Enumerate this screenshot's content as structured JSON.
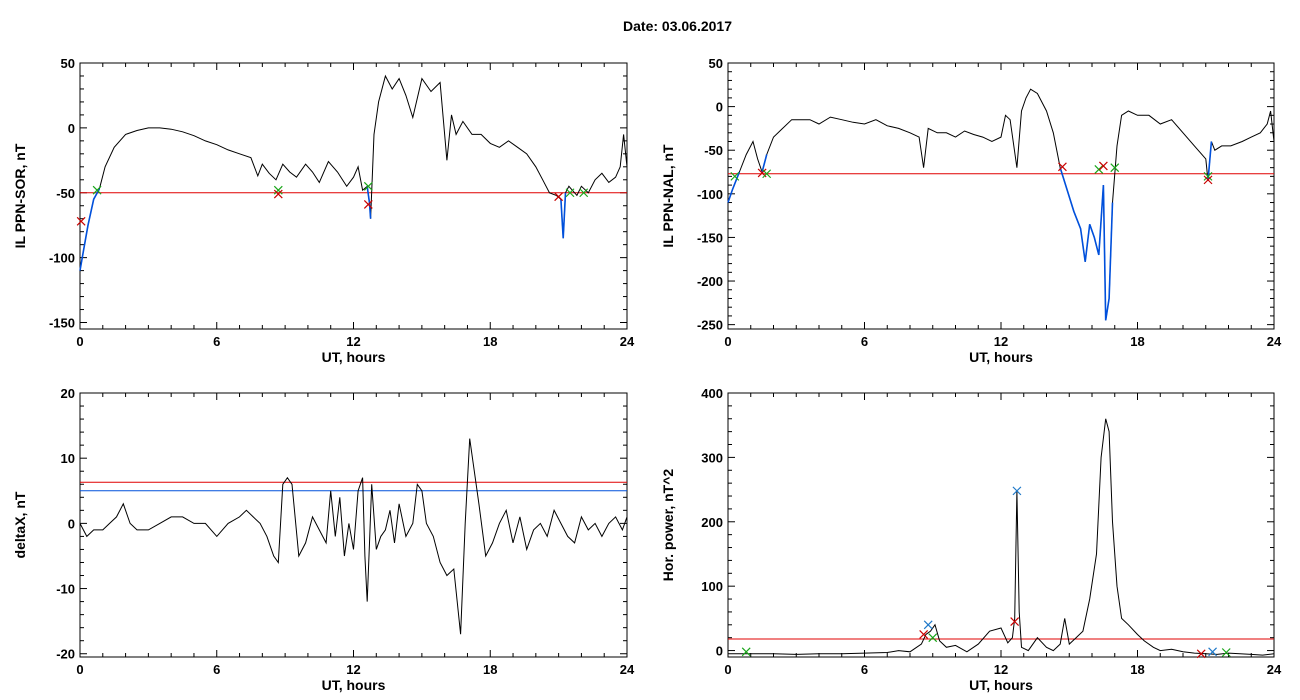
{
  "page": {
    "date_text": "Date:  03.06.2017"
  },
  "colors": {
    "data": "#000000",
    "event": "#0050dc",
    "threshold_red": "#e00000",
    "threshold_blue": "#0050dc",
    "start_marker": "#19a519",
    "end_marker": "#c80000",
    "peak_marker": "#1e78c8"
  },
  "chart_data": [
    {
      "id": "sor",
      "type": "line",
      "ylabel": "IL PPN-SOR, nT",
      "xlabel": "UT, hours",
      "xlim": [
        0,
        24
      ],
      "ylim": [
        -155,
        50
      ],
      "xticks": [
        0,
        6,
        12,
        18,
        24
      ],
      "yticks": [
        50,
        0,
        -50,
        -100,
        -150
      ],
      "thresholds": [
        {
          "value": -50,
          "color": "red"
        }
      ],
      "series": [
        {
          "x": [
            0,
            0.15,
            0.35,
            0.6,
            0.85,
            1.1,
            1.5,
            2,
            2.5,
            3,
            3.5,
            4,
            4.5,
            5,
            5.5,
            6,
            6.5,
            7,
            7.5,
            7.8,
            8,
            8.3,
            8.6,
            8.9,
            9.2,
            9.5,
            9.9,
            10.2,
            10.5,
            10.9,
            11.3,
            11.7,
            12,
            12.2,
            12.4,
            12.6,
            12.7,
            12.75,
            12.9,
            13.1,
            13.4,
            13.7,
            14,
            14.3,
            14.6,
            15,
            15.4,
            15.8,
            16.1,
            16.3,
            16.5,
            16.8,
            17.2,
            17.6,
            18,
            18.4,
            18.8,
            19.2,
            19.6,
            20,
            20.3,
            20.6,
            20.9,
            21.1,
            21.2,
            21.3,
            21.45,
            21.6,
            21.8,
            22,
            22.3,
            22.6,
            22.9,
            23.2,
            23.5,
            23.7,
            23.85,
            24
          ],
          "y": [
            -110,
            -95,
            -75,
            -55,
            -47,
            -30,
            -15,
            -5,
            -2,
            0,
            0,
            -1,
            -3,
            -6,
            -10,
            -13,
            -17,
            -20,
            -23,
            -37,
            -28,
            -35,
            -40,
            -28,
            -34,
            -38,
            -28,
            -34,
            -42,
            -26,
            -34,
            -45,
            -38,
            -30,
            -48,
            -45,
            -58,
            -70,
            -5,
            20,
            40,
            30,
            38,
            25,
            8,
            38,
            28,
            35,
            -25,
            10,
            -5,
            5,
            -5,
            -5,
            -12,
            -15,
            -10,
            -15,
            -20,
            -30,
            -40,
            -50,
            -52,
            -55,
            -85,
            -50,
            -45,
            -48,
            -52,
            -45,
            -50,
            -40,
            -35,
            -42,
            -38,
            -30,
            -5,
            -30
          ]
        }
      ],
      "event_segments": [
        [
          0,
          0.9
        ],
        [
          12.6,
          12.8
        ],
        [
          21.05,
          21.4
        ]
      ],
      "markers": [
        {
          "x": 0.05,
          "y": -72,
          "kind": "end"
        },
        {
          "x": 0.75,
          "y": -48,
          "kind": "start"
        },
        {
          "x": 8.7,
          "y": -48,
          "kind": "start"
        },
        {
          "x": 8.7,
          "y": -51,
          "kind": "end"
        },
        {
          "x": 12.65,
          "y": -45,
          "kind": "start"
        },
        {
          "x": 12.65,
          "y": -59,
          "kind": "end"
        },
        {
          "x": 21.0,
          "y": -53,
          "kind": "end"
        },
        {
          "x": 21.5,
          "y": -50,
          "kind": "start"
        },
        {
          "x": 22.1,
          "y": -50,
          "kind": "start"
        }
      ]
    },
    {
      "id": "nal",
      "type": "line",
      "ylabel": "IL PPN-NAL, nT",
      "xlabel": "UT, hours",
      "xlim": [
        0,
        24
      ],
      "ylim": [
        -255,
        50
      ],
      "xticks": [
        0,
        6,
        12,
        18,
        24
      ],
      "yticks": [
        50,
        0,
        -50,
        -100,
        -150,
        -200,
        -250
      ],
      "thresholds": [
        {
          "value": -77,
          "color": "red"
        }
      ],
      "series": [
        {
          "x": [
            0,
            0.2,
            0.5,
            0.8,
            1.1,
            1.3,
            1.5,
            1.7,
            2,
            2.4,
            2.8,
            3.2,
            3.6,
            4,
            4.5,
            5,
            5.5,
            6,
            6.5,
            7,
            7.5,
            8,
            8.4,
            8.6,
            8.8,
            9.2,
            9.6,
            10,
            10.4,
            10.8,
            11.2,
            11.6,
            12,
            12.2,
            12.4,
            12.7,
            12.9,
            13.1,
            13.3,
            13.6,
            14,
            14.3,
            14.6,
            14.9,
            15.2,
            15.5,
            15.7,
            15.9,
            16.1,
            16.3,
            16.5,
            16.6,
            16.75,
            16.9,
            17.1,
            17.3,
            17.6,
            18,
            18.5,
            19,
            19.5,
            20,
            20.5,
            21,
            21.1,
            21.25,
            21.4,
            21.7,
            22.1,
            22.6,
            23,
            23.4,
            23.7,
            23.85,
            24
          ],
          "y": [
            -110,
            -95,
            -75,
            -55,
            -40,
            -60,
            -75,
            -55,
            -35,
            -25,
            -15,
            -15,
            -15,
            -20,
            -12,
            -15,
            -18,
            -20,
            -15,
            -22,
            -25,
            -30,
            -35,
            -70,
            -25,
            -30,
            -30,
            -35,
            -28,
            -32,
            -35,
            -40,
            -35,
            -10,
            -15,
            -70,
            -5,
            10,
            20,
            15,
            -5,
            -30,
            -70,
            -95,
            -120,
            -140,
            -178,
            -135,
            -150,
            -170,
            -90,
            -245,
            -220,
            -110,
            -45,
            -10,
            -5,
            -10,
            -10,
            -20,
            -15,
            -30,
            -45,
            -60,
            -85,
            -40,
            -50,
            -45,
            -45,
            -40,
            -35,
            -30,
            -20,
            -5,
            -40
          ]
        }
      ],
      "event_segments": [
        [
          0,
          0.7
        ],
        [
          1.4,
          1.8
        ],
        [
          14.6,
          16.9
        ],
        [
          21.05,
          21.3
        ]
      ],
      "markers": [
        {
          "x": 0.3,
          "y": -80,
          "kind": "start"
        },
        {
          "x": 1.5,
          "y": -76,
          "kind": "end"
        },
        {
          "x": 1.7,
          "y": -77,
          "kind": "start"
        },
        {
          "x": 14.7,
          "y": -69,
          "kind": "end"
        },
        {
          "x": 16.3,
          "y": -72,
          "kind": "start"
        },
        {
          "x": 16.5,
          "y": -68,
          "kind": "end"
        },
        {
          "x": 17.0,
          "y": -70,
          "kind": "start"
        },
        {
          "x": 21.1,
          "y": -80,
          "kind": "start"
        },
        {
          "x": 21.1,
          "y": -84,
          "kind": "end"
        }
      ]
    },
    {
      "id": "deltax",
      "type": "line",
      "ylabel": "deltaX, nT",
      "xlabel": "UT, hours",
      "xlim": [
        0,
        24
      ],
      "ylim": [
        -20.5,
        20
      ],
      "xticks": [
        0,
        6,
        12,
        18,
        24
      ],
      "yticks": [
        20,
        10,
        0,
        -10,
        -20
      ],
      "thresholds": [
        {
          "value": 6.3,
          "color": "red"
        },
        {
          "value": 5,
          "color": "blue"
        }
      ],
      "series": [
        {
          "x": [
            0,
            0.3,
            0.6,
            1,
            1.3,
            1.6,
            1.9,
            2.2,
            2.5,
            3,
            3.5,
            4,
            4.5,
            5,
            5.5,
            6,
            6.5,
            7,
            7.3,
            7.6,
            7.9,
            8.2,
            8.5,
            8.7,
            8.9,
            9.1,
            9.3,
            9.6,
            9.9,
            10.2,
            10.5,
            10.8,
            11,
            11.2,
            11.4,
            11.6,
            11.8,
            12,
            12.2,
            12.4,
            12.5,
            12.6,
            12.7,
            12.8,
            13,
            13.2,
            13.4,
            13.6,
            13.8,
            14,
            14.3,
            14.6,
            14.8,
            15,
            15.2,
            15.5,
            15.8,
            16.1,
            16.4,
            16.7,
            16.9,
            17.1,
            17.3,
            17.5,
            17.8,
            18.1,
            18.4,
            18.7,
            19,
            19.3,
            19.6,
            19.9,
            20.2,
            20.5,
            20.8,
            21.1,
            21.4,
            21.7,
            22,
            22.3,
            22.6,
            22.9,
            23.2,
            23.5,
            23.8,
            24
          ],
          "y": [
            0,
            -2,
            -1,
            -1,
            0,
            1,
            3,
            0,
            -1,
            -1,
            0,
            1,
            1,
            0,
            0,
            -2,
            0,
            1,
            2,
            1,
            0,
            -2,
            -5,
            -6,
            6,
            7,
            6,
            -5,
            -3,
            1,
            -1,
            -3,
            5,
            -2,
            4,
            -5,
            0,
            -4,
            5,
            7,
            -5,
            -12,
            -3,
            6,
            -4,
            -2,
            -1,
            2,
            -3,
            3,
            -2,
            0,
            6,
            5,
            0,
            -2,
            -6,
            -8,
            -7,
            -17,
            0,
            13,
            8,
            3,
            -5,
            -3,
            0,
            2,
            -3,
            1,
            -4,
            -1,
            0,
            -2,
            2,
            0,
            -2,
            -3,
            1,
            -1,
            0,
            -2,
            0,
            1,
            -1,
            1
          ]
        }
      ],
      "event_segments": [],
      "markers": []
    },
    {
      "id": "power",
      "type": "line",
      "ylabel": "Hor. power, nT^2",
      "xlabel": "UT, hours",
      "xlim": [
        0,
        24
      ],
      "ylim": [
        -10,
        400
      ],
      "xticks": [
        0,
        6,
        12,
        18,
        24
      ],
      "yticks": [
        400,
        300,
        200,
        100,
        0
      ],
      "thresholds": [
        {
          "value": 18,
          "color": "red"
        }
      ],
      "series": [
        {
          "x": [
            0,
            1,
            2,
            3,
            4,
            5,
            6,
            7,
            7.5,
            8,
            8.5,
            8.7,
            8.9,
            9.1,
            9.3,
            9.6,
            10,
            10.5,
            11,
            11.5,
            12,
            12.3,
            12.5,
            12.6,
            12.7,
            12.8,
            12.9,
            13.2,
            13.6,
            14,
            14.3,
            14.6,
            14.8,
            15,
            15.3,
            15.6,
            15.9,
            16.2,
            16.4,
            16.6,
            16.75,
            16.9,
            17.1,
            17.3,
            17.6,
            18,
            18.3,
            18.7,
            19,
            19.5,
            20,
            20.5,
            21,
            21.5,
            22,
            22.5,
            23,
            23.5,
            24
          ],
          "y": [
            -5,
            -5,
            -5,
            -6,
            -5,
            -5,
            -4,
            -3,
            0,
            -2,
            10,
            25,
            30,
            40,
            15,
            5,
            8,
            -2,
            10,
            30,
            35,
            12,
            20,
            50,
            248,
            60,
            5,
            0,
            20,
            5,
            0,
            10,
            50,
            10,
            20,
            30,
            80,
            150,
            300,
            360,
            340,
            200,
            100,
            50,
            40,
            25,
            15,
            5,
            0,
            2,
            -2,
            -4,
            -5,
            -6,
            -4,
            -5,
            -6,
            -7,
            -5
          ]
        }
      ],
      "event_segments": [],
      "markers": [
        {
          "x": 0.8,
          "y": -2,
          "kind": "start"
        },
        {
          "x": 8.6,
          "y": 25,
          "kind": "end"
        },
        {
          "x": 8.8,
          "y": 40,
          "kind": "peak"
        },
        {
          "x": 9.0,
          "y": 20,
          "kind": "start"
        },
        {
          "x": 12.7,
          "y": 248,
          "kind": "peak"
        },
        {
          "x": 12.6,
          "y": 45,
          "kind": "end"
        },
        {
          "x": 20.8,
          "y": -5,
          "kind": "end"
        },
        {
          "x": 21.3,
          "y": -2,
          "kind": "peak"
        },
        {
          "x": 21.9,
          "y": -3,
          "kind": "start"
        }
      ]
    }
  ]
}
